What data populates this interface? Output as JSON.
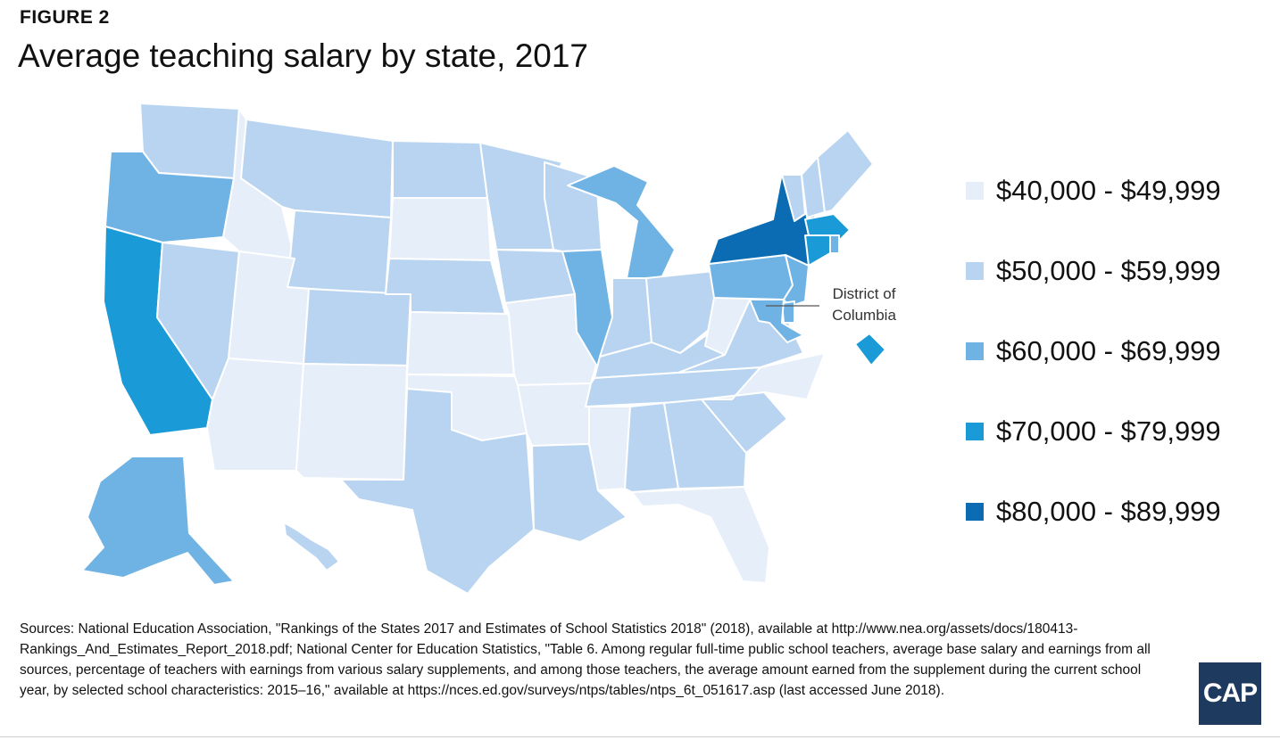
{
  "header": {
    "kicker": "FIGURE 2",
    "title": "Average teaching salary by state, 2017"
  },
  "colors": {
    "bin_40_49": "#e6eef9",
    "bin_50_59": "#b8d4f0",
    "bin_60_69": "#6fb2e4",
    "bin_70_79": "#1a9ad6",
    "bin_80_89": "#0c6cb3",
    "border": "#ffffff"
  },
  "legend": {
    "items": [
      {
        "label": "$40,000 - $49,999",
        "color": "#e6eef9"
      },
      {
        "label": "$50,000 - $59,999",
        "color": "#b8d4f0"
      },
      {
        "label": "$60,000 - $69,999",
        "color": "#6fb2e4"
      },
      {
        "label": "$70,000 - $79,999",
        "color": "#1a9ad6"
      },
      {
        "label": "$80,000 - $89,999",
        "color": "#0c6cb3"
      }
    ]
  },
  "callout": {
    "dc_label_line1": "District of",
    "dc_label_line2": "Columbia"
  },
  "states": {
    "WA": "50-59",
    "OR": "60-69",
    "CA": "70-79",
    "NV": "50-59",
    "ID": "40-49",
    "MT": "50-59",
    "WY": "50-59",
    "UT": "40-49",
    "AZ": "40-49",
    "CO": "50-59",
    "NM": "40-49",
    "ND": "50-59",
    "SD": "40-49",
    "NE": "50-59",
    "KS": "40-49",
    "OK": "40-49",
    "TX": "50-59",
    "MN": "50-59",
    "IA": "50-59",
    "MO": "40-49",
    "AR": "40-49",
    "LA": "50-59",
    "WI": "50-59",
    "IL": "60-69",
    "MI": "60-69",
    "IN": "50-59",
    "OH": "50-59",
    "KY": "50-59",
    "TN": "50-59",
    "MS": "40-49",
    "AL": "50-59",
    "GA": "50-59",
    "FL": "40-49",
    "SC": "50-59",
    "NC": "40-49",
    "VA": "50-59",
    "WV": "40-49",
    "PA": "60-69",
    "NY": "80-89",
    "VT": "50-59",
    "NH": "50-59",
    "ME": "50-59",
    "MA": "70-79",
    "RI": "60-69",
    "CT": "70-79",
    "NJ": "60-69",
    "DE": "60-69",
    "MD": "60-69",
    "DC": "70-79",
    "AK": "60-69",
    "HI": "50-59"
  },
  "footer": {
    "sources": "Sources: National Education Association, \"Rankings of the States 2017 and Estimates of School Statistics 2018\" (2018), available at http://www.nea.org/assets/docs/180413-Rankings_And_Estimates_Report_2018.pdf; National Center for Education Statistics, \"Table 6. Among regular full-time public school teachers, average base salary and earnings from all sources, percentage of teachers with earnings from various salary supplements, and among those teachers, the average amount earned from the supplement during the current school year, by selected school characteristics: 2015–16,\" available at https://nces.ed.gov/surveys/ntps/tables/ntps_6t_051617.asp (last accessed June 2018).",
    "logo_text": "CAP"
  }
}
